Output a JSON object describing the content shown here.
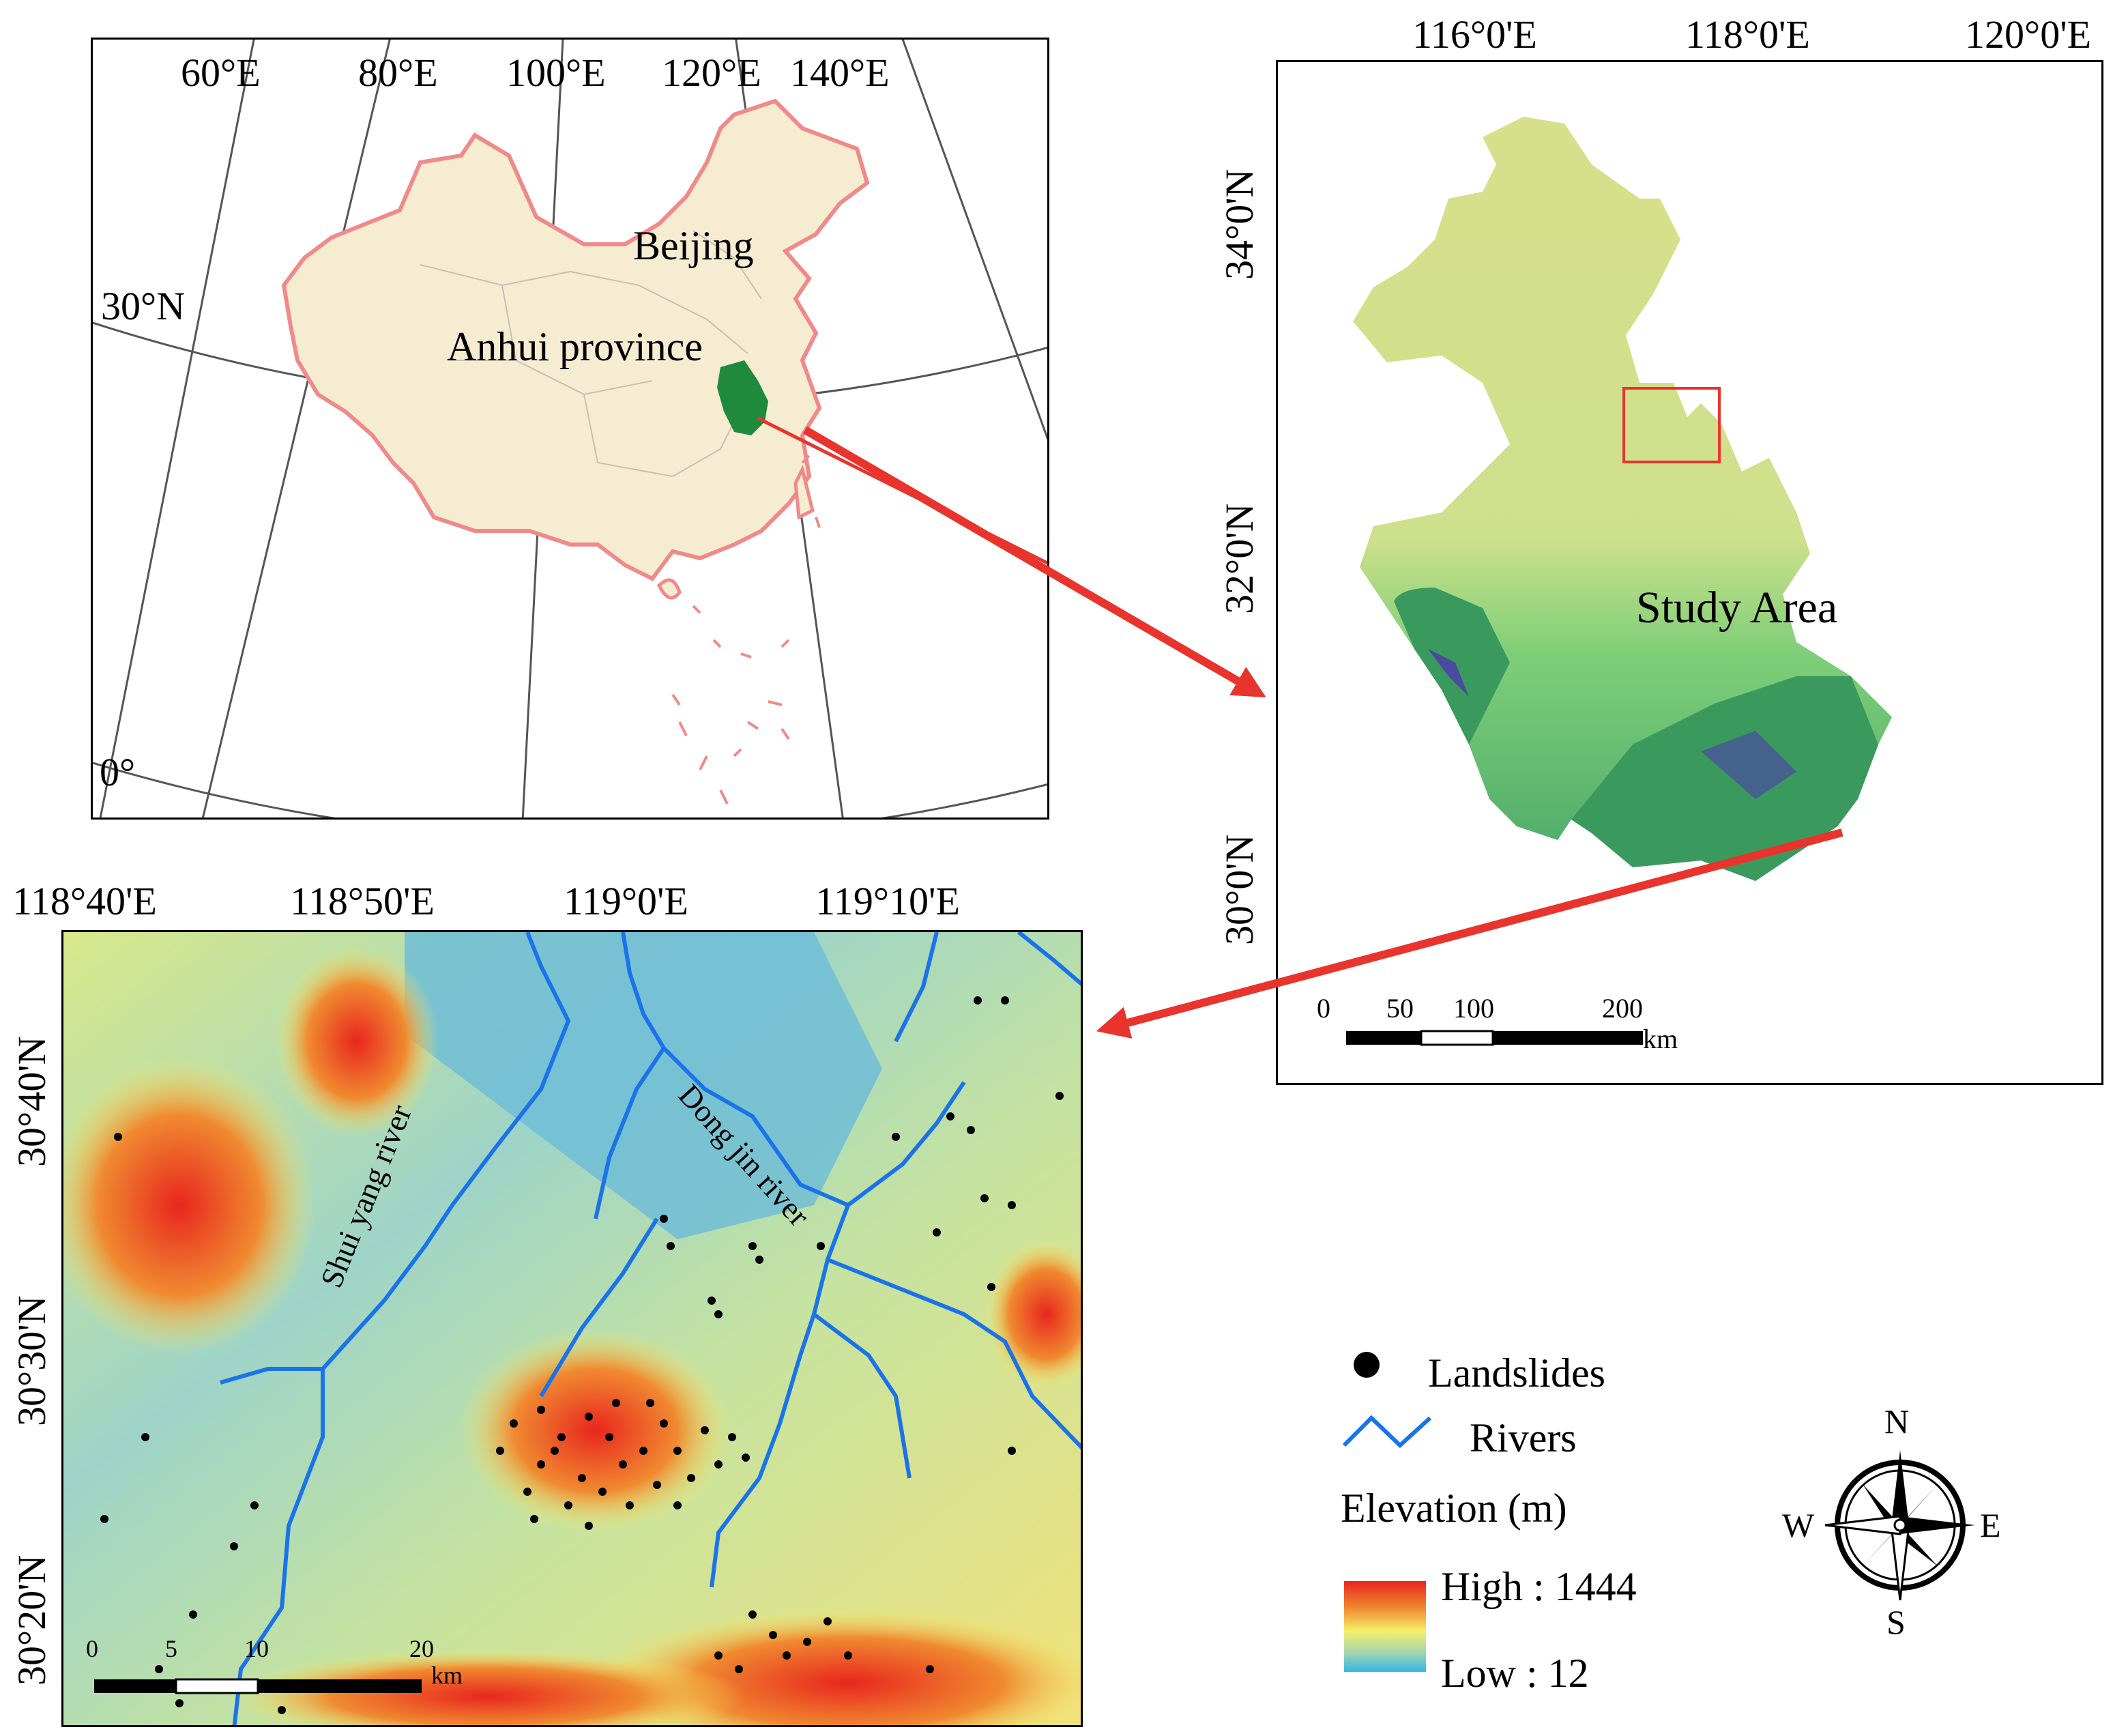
{
  "china_map": {
    "lon_ticks": [
      "60°E",
      "80°E",
      "100°E",
      "120°E",
      "140°E"
    ],
    "lat_ticks": [
      "30°N",
      "0°"
    ],
    "labels": {
      "capital": "Beijing",
      "province": "Anhui province"
    }
  },
  "anhui_map": {
    "top_ticks": [
      "116°0'E",
      "118°0'E",
      "120°0'E"
    ],
    "left_ticks": [
      "34°0'N",
      "32°0'N",
      "30°0'N"
    ],
    "title": "Study Area",
    "scale": {
      "ticks": [
        "0",
        "50",
        "100",
        "200"
      ],
      "unit": "km"
    }
  },
  "detail_map": {
    "top_ticks": [
      "118°40'E",
      "118°50'E",
      "119°0'E",
      "119°10'E"
    ],
    "left_ticks": [
      "30°40'N",
      "30°30'N",
      "30°20'N"
    ],
    "rivers": {
      "west": "Shui yang river",
      "east": "Dong jin river"
    },
    "scale": {
      "ticks": [
        "0",
        "5",
        "10",
        "20"
      ],
      "unit": "km"
    }
  },
  "legend": {
    "landslides": "Landslides",
    "rivers": "Rivers",
    "elevation_title": "Elevation (m)",
    "high": "High : 1444",
    "low": "Low : 12",
    "colors": {
      "river": "#1a73e8",
      "high": "#e8261e",
      "mid": "#f6ef6a",
      "low": "#33b6e8",
      "province": "#1f8a3c",
      "china_border": "#f08a8a",
      "china_fill": "#f6ecd2",
      "arrow": "#e8342c"
    }
  },
  "compass": {
    "n": "N",
    "e": "E",
    "s": "S",
    "w": "W"
  }
}
